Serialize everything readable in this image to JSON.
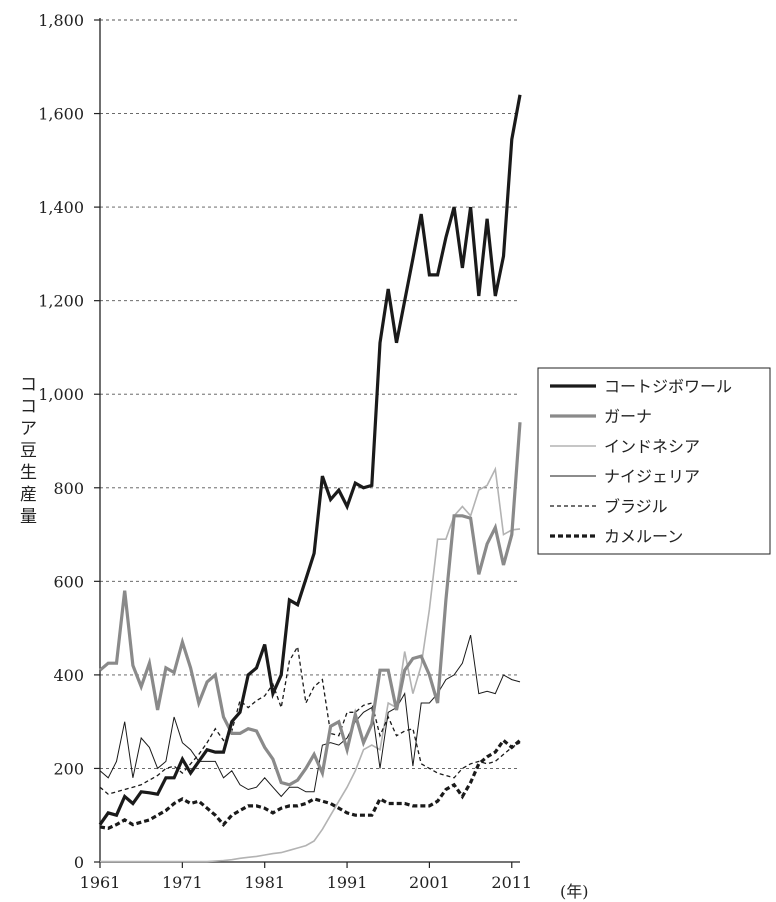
{
  "chart_data": {
    "type": "line",
    "title": "",
    "xlabel": "",
    "ylabel": "ココア豆生産量",
    "x_unit": "(年)",
    "xlim": [
      1961,
      2012
    ],
    "ylim": [
      0,
      1800
    ],
    "y_ticks": [
      0,
      200,
      400,
      600,
      800,
      1000,
      1200,
      1400,
      1600,
      1800
    ],
    "y_tick_labels": [
      "0",
      "200",
      "400",
      "600",
      "800",
      "1,000",
      "1,200",
      "1,400",
      "1,600",
      "1,800"
    ],
    "x_ticks": [
      1961,
      1971,
      1981,
      1991,
      2001,
      2011
    ],
    "x_tick_labels": [
      "1961",
      "1971",
      "1981",
      "1991",
      "2001",
      "2011"
    ],
    "grid": "horizontal dashed",
    "legend_position": "right",
    "x": [
      1961,
      1962,
      1963,
      1964,
      1965,
      1966,
      1967,
      1968,
      1969,
      1970,
      1971,
      1972,
      1973,
      1974,
      1975,
      1976,
      1977,
      1978,
      1979,
      1980,
      1981,
      1982,
      1983,
      1984,
      1985,
      1986,
      1987,
      1988,
      1989,
      1990,
      1991,
      1992,
      1993,
      1994,
      1995,
      1996,
      1997,
      1998,
      1999,
      2000,
      2001,
      2002,
      2003,
      2004,
      2005,
      2006,
      2007,
      2008,
      2009,
      2010,
      2011,
      2012
    ],
    "series": [
      {
        "name": "コートジボワール",
        "color": "#1a1a1a",
        "style": "solid-thick",
        "values": [
          80,
          105,
          100,
          140,
          125,
          150,
          148,
          145,
          180,
          180,
          220,
          190,
          215,
          240,
          235,
          235,
          300,
          320,
          400,
          415,
          465,
          360,
          400,
          560,
          550,
          605,
          660,
          825,
          775,
          795,
          760,
          810,
          800,
          805,
          1110,
          1225,
          1110,
          1200,
          1290,
          1385,
          1255,
          1255,
          1335,
          1400,
          1270,
          1400,
          1210,
          1375,
          1210,
          1295,
          1545,
          1640
        ]
      },
      {
        "name": "ガーナ",
        "color": "#8a8a8a",
        "style": "solid-thick",
        "values": [
          410,
          425,
          425,
          580,
          420,
          375,
          425,
          325,
          415,
          405,
          470,
          415,
          340,
          385,
          400,
          310,
          275,
          275,
          285,
          280,
          245,
          220,
          170,
          165,
          175,
          200,
          230,
          190,
          290,
          300,
          240,
          315,
          255,
          295,
          410,
          410,
          325,
          410,
          435,
          440,
          400,
          340,
          560,
          740,
          740,
          735,
          615,
          680,
          715,
          635,
          700,
          940
        ]
      },
      {
        "name": "インドネシア",
        "color": "#b3b3b3",
        "style": "solid-thin",
        "values": [
          1,
          1,
          1,
          1,
          1,
          1,
          1,
          1,
          1,
          1,
          1,
          1,
          1,
          1,
          2,
          3,
          5,
          8,
          10,
          12,
          15,
          18,
          20,
          25,
          30,
          35,
          45,
          70,
          100,
          130,
          160,
          195,
          240,
          250,
          240,
          340,
          330,
          450,
          360,
          420,
          540,
          690,
          690,
          740,
          760,
          740,
          795,
          805,
          840,
          700,
          710,
          712
        ]
      },
      {
        "name": "ナイジェリア",
        "color": "#1a1a1a",
        "style": "solid-hairline",
        "values": [
          195,
          180,
          215,
          300,
          180,
          265,
          245,
          200,
          215,
          310,
          255,
          240,
          215,
          215,
          215,
          180,
          195,
          165,
          155,
          160,
          180,
          160,
          140,
          160,
          160,
          150,
          150,
          250,
          255,
          250,
          265,
          300,
          320,
          330,
          200,
          320,
          330,
          360,
          205,
          340,
          340,
          360,
          390,
          400,
          425,
          485,
          360,
          365,
          360,
          400,
          390,
          385
        ]
      },
      {
        "name": "ブラジル",
        "color": "#1a1a1a",
        "style": "dashed-thin",
        "values": [
          160,
          145,
          150,
          155,
          160,
          165,
          175,
          185,
          200,
          205,
          190,
          210,
          230,
          255,
          285,
          260,
          280,
          345,
          330,
          345,
          355,
          380,
          330,
          430,
          460,
          340,
          375,
          390,
          275,
          270,
          320,
          320,
          335,
          340,
          270,
          310,
          270,
          280,
          285,
          210,
          200,
          190,
          185,
          180,
          200,
          210,
          215,
          210,
          215,
          230,
          245,
          255
        ]
      },
      {
        "name": "カメルーン",
        "color": "#1a1a1a",
        "style": "dashed-thick",
        "values": [
          75,
          72,
          80,
          90,
          80,
          85,
          90,
          100,
          110,
          125,
          135,
          125,
          130,
          115,
          100,
          80,
          100,
          110,
          120,
          120,
          115,
          105,
          115,
          120,
          120,
          125,
          135,
          130,
          125,
          115,
          105,
          100,
          100,
          100,
          135,
          125,
          125,
          125,
          120,
          120,
          120,
          130,
          155,
          165,
          140,
          170,
          210,
          225,
          235,
          260,
          245,
          260
        ]
      }
    ]
  }
}
